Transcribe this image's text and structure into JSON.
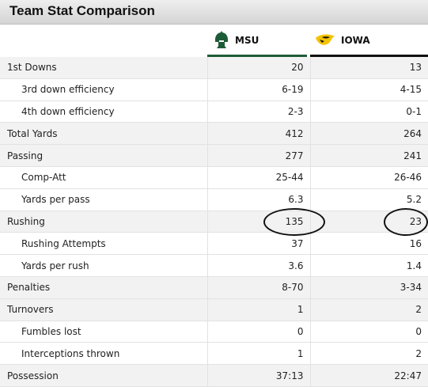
{
  "title": "Team Stat Comparison",
  "teams": [
    {
      "name": "MSU",
      "logo_icon": "spartan-helmet-icon",
      "color": "#1e5c37"
    },
    {
      "name": "IOWA",
      "logo_icon": "hawkeye-icon",
      "color": "#f3c300"
    }
  ],
  "rows": [
    {
      "label": "1st Downs",
      "msu": "20",
      "iowa": "13",
      "level": "main"
    },
    {
      "label": "3rd down efficiency",
      "msu": "6-19",
      "iowa": "4-15",
      "level": "sub"
    },
    {
      "label": "4th down efficiency",
      "msu": "2-3",
      "iowa": "0-1",
      "level": "sub"
    },
    {
      "label": "Total Yards",
      "msu": "412",
      "iowa": "264",
      "level": "main"
    },
    {
      "label": "Passing",
      "msu": "277",
      "iowa": "241",
      "level": "main"
    },
    {
      "label": "Comp-Att",
      "msu": "25-44",
      "iowa": "26-46",
      "level": "sub"
    },
    {
      "label": "Yards per pass",
      "msu": "6.3",
      "iowa": "5.2",
      "level": "sub"
    },
    {
      "label": "Rushing",
      "msu": "135",
      "iowa": "23",
      "level": "main",
      "circled": true
    },
    {
      "label": "Rushing Attempts",
      "msu": "37",
      "iowa": "16",
      "level": "sub"
    },
    {
      "label": "Yards per rush",
      "msu": "3.6",
      "iowa": "1.4",
      "level": "sub"
    },
    {
      "label": "Penalties",
      "msu": "8-70",
      "iowa": "3-34",
      "level": "main"
    },
    {
      "label": "Turnovers",
      "msu": "1",
      "iowa": "2",
      "level": "main"
    },
    {
      "label": "Fumbles lost",
      "msu": "0",
      "iowa": "0",
      "level": "sub"
    },
    {
      "label": "Interceptions thrown",
      "msu": "1",
      "iowa": "2",
      "level": "sub"
    },
    {
      "label": "Possession",
      "msu": "37:13",
      "iowa": "22:47",
      "level": "main"
    }
  ]
}
